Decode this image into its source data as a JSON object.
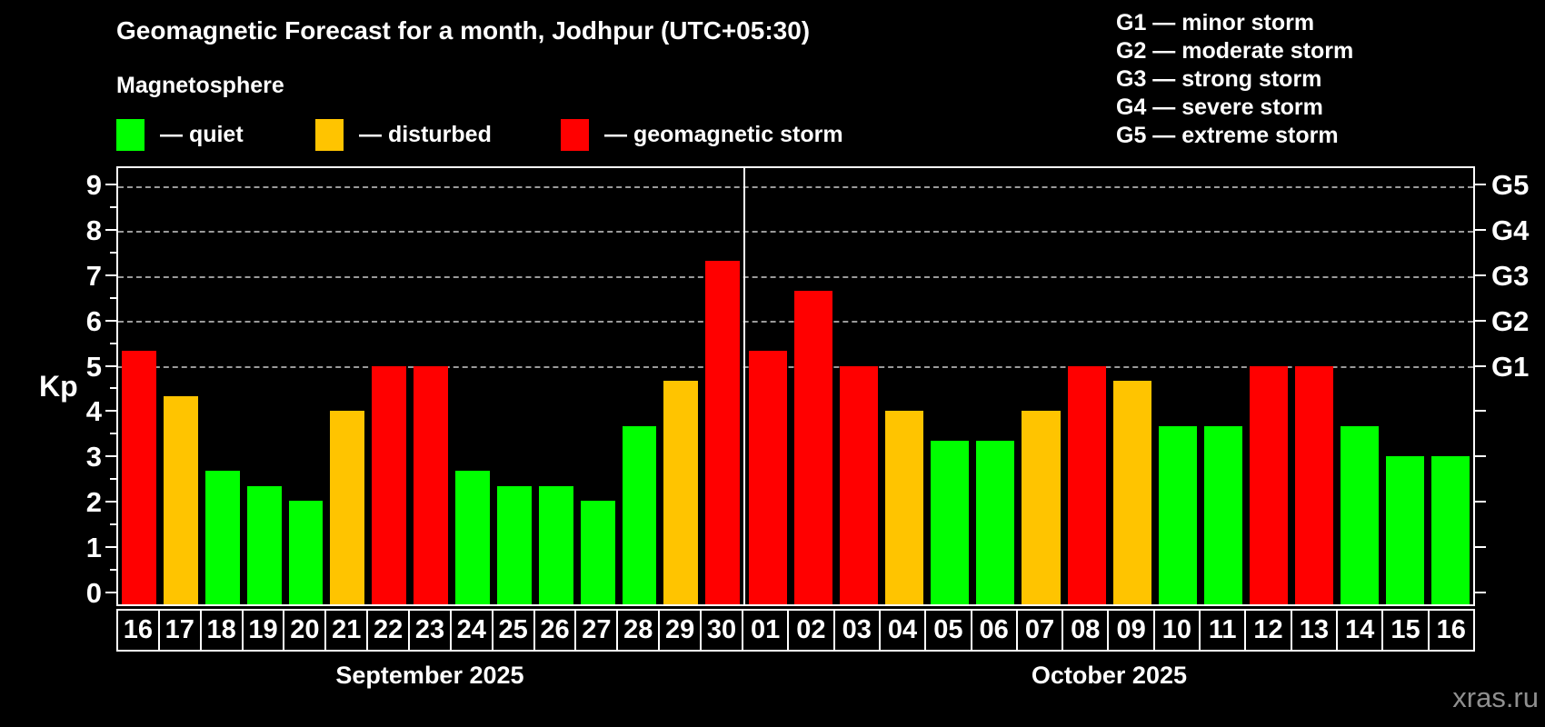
{
  "title": "Geomagnetic Forecast for a month, Jodhpur (UTC+05:30)",
  "subtitle": "Magnetosphere",
  "legend": {
    "items": [
      {
        "key": "quiet",
        "label": "— quiet",
        "color": "#00ff00"
      },
      {
        "key": "disturbed",
        "label": "— disturbed",
        "color": "#ffc400"
      },
      {
        "key": "storm",
        "label": "— geomagnetic storm",
        "color": "#ff0000"
      }
    ]
  },
  "storm_scale": [
    "G1 — minor storm",
    "G2 — moderate storm",
    "G3 — strong storm",
    "G4 — severe storm",
    "G5 — extreme storm"
  ],
  "watermark": "xras.ru",
  "chart_data": {
    "type": "bar",
    "ylabel": "Kp",
    "ylim": [
      -0.3,
      9.4
    ],
    "yticks": [
      0,
      1,
      2,
      3,
      4,
      5,
      6,
      7,
      8,
      9
    ],
    "minor_yticks": [
      0.5,
      1.5,
      2.5,
      3.5,
      4.5,
      5.5,
      6.5,
      7.5,
      8.5
    ],
    "gridlines": [
      5,
      6,
      7,
      8,
      9
    ],
    "grid_style": "dashed",
    "right_axis_labels": [
      {
        "value": 5,
        "label": "G1"
      },
      {
        "value": 6,
        "label": "G2"
      },
      {
        "value": 7,
        "label": "G3"
      },
      {
        "value": 8,
        "label": "G4"
      },
      {
        "value": 9,
        "label": "G5"
      }
    ],
    "colors": {
      "quiet": "#00ff00",
      "disturbed": "#ffc400",
      "storm": "#ff0000"
    },
    "layout": {
      "month_width_pct": [
        46.15,
        53.85
      ]
    },
    "months": [
      {
        "label": "September 2025",
        "days": [
          {
            "day": "16",
            "kp": 5.33,
            "status": "storm"
          },
          {
            "day": "17",
            "kp": 4.33,
            "status": "disturbed"
          },
          {
            "day": "18",
            "kp": 2.67,
            "status": "quiet"
          },
          {
            "day": "19",
            "kp": 2.33,
            "status": "quiet"
          },
          {
            "day": "20",
            "kp": 2.0,
            "status": "quiet"
          },
          {
            "day": "21",
            "kp": 4.0,
            "status": "disturbed"
          },
          {
            "day": "22",
            "kp": 5.0,
            "status": "storm"
          },
          {
            "day": "23",
            "kp": 5.0,
            "status": "storm"
          },
          {
            "day": "24",
            "kp": 2.67,
            "status": "quiet"
          },
          {
            "day": "25",
            "kp": 2.33,
            "status": "quiet"
          },
          {
            "day": "26",
            "kp": 2.33,
            "status": "quiet"
          },
          {
            "day": "27",
            "kp": 2.0,
            "status": "quiet"
          },
          {
            "day": "28",
            "kp": 3.67,
            "status": "quiet"
          },
          {
            "day": "29",
            "kp": 4.67,
            "status": "disturbed"
          },
          {
            "day": "30",
            "kp": 7.33,
            "status": "storm"
          }
        ]
      },
      {
        "label": "October 2025",
        "days": [
          {
            "day": "01",
            "kp": 5.33,
            "status": "storm"
          },
          {
            "day": "02",
            "kp": 6.67,
            "status": "storm"
          },
          {
            "day": "03",
            "kp": 5.0,
            "status": "storm"
          },
          {
            "day": "04",
            "kp": 4.0,
            "status": "disturbed"
          },
          {
            "day": "05",
            "kp": 3.33,
            "status": "quiet"
          },
          {
            "day": "06",
            "kp": 3.33,
            "status": "quiet"
          },
          {
            "day": "07",
            "kp": 4.0,
            "status": "disturbed"
          },
          {
            "day": "08",
            "kp": 5.0,
            "status": "storm"
          },
          {
            "day": "09",
            "kp": 4.67,
            "status": "disturbed"
          },
          {
            "day": "10",
            "kp": 3.67,
            "status": "quiet"
          },
          {
            "day": "11",
            "kp": 3.67,
            "status": "quiet"
          },
          {
            "day": "12",
            "kp": 5.0,
            "status": "storm"
          },
          {
            "day": "13",
            "kp": 5.0,
            "status": "storm"
          },
          {
            "day": "14",
            "kp": 3.67,
            "status": "quiet"
          },
          {
            "day": "15",
            "kp": 3.0,
            "status": "quiet"
          },
          {
            "day": "16",
            "kp": 3.0,
            "status": "quiet"
          }
        ]
      }
    ]
  }
}
